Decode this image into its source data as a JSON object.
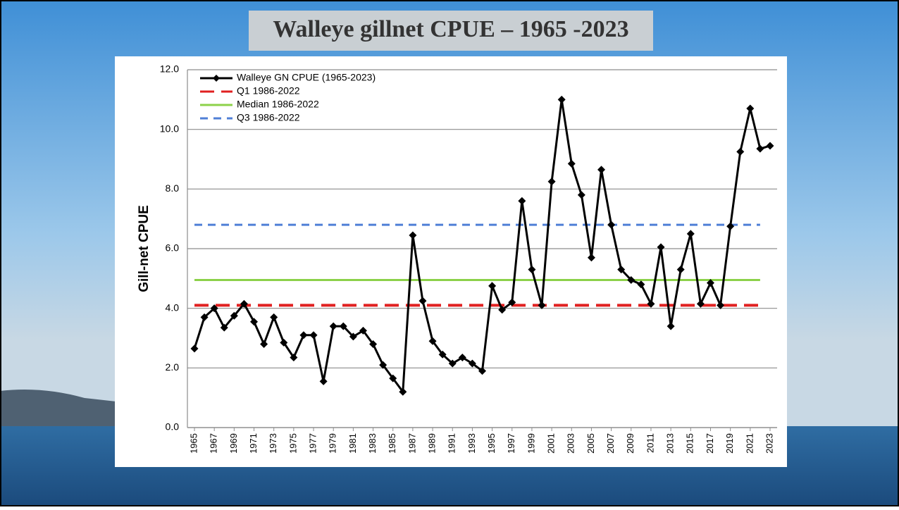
{
  "chart_data": {
    "type": "line",
    "title": "Walleye gillnet CPUE – 1965 -2023",
    "y_label": "Gill-net CPUE",
    "x": [
      1965,
      1966,
      1967,
      1968,
      1969,
      1970,
      1971,
      1972,
      1973,
      1974,
      1975,
      1976,
      1977,
      1978,
      1979,
      1980,
      1981,
      1982,
      1983,
      1984,
      1985,
      1986,
      1987,
      1988,
      1989,
      1990,
      1991,
      1992,
      1993,
      1994,
      1995,
      1996,
      1997,
      1998,
      1999,
      2000,
      2001,
      2002,
      2003,
      2004,
      2005,
      2006,
      2007,
      2008,
      2009,
      2010,
      2011,
      2012,
      2013,
      2014,
      2015,
      2016,
      2017,
      2018,
      2019,
      2020,
      2021,
      2022,
      2023
    ],
    "series": [
      {
        "name": "Walleye GN CPUE (1965-2023)",
        "color": "#000000",
        "values": [
          2.65,
          3.7,
          4.0,
          3.35,
          3.75,
          4.15,
          3.55,
          2.8,
          3.7,
          2.85,
          2.35,
          3.1,
          3.1,
          1.55,
          3.4,
          3.4,
          3.05,
          3.25,
          2.8,
          2.1,
          1.65,
          1.2,
          6.45,
          4.25,
          2.9,
          2.45,
          2.15,
          2.35,
          2.15,
          1.9,
          4.75,
          3.95,
          4.2,
          7.6,
          5.3,
          4.1,
          8.25,
          11.0,
          8.85,
          7.8,
          5.7,
          8.65,
          6.8,
          5.3,
          4.95,
          4.8,
          4.15,
          6.05,
          3.4,
          5.3,
          6.5,
          4.15,
          4.85,
          4.1,
          6.75,
          9.25,
          10.7,
          9.35,
          9.45
        ]
      }
    ],
    "reference_lines": [
      {
        "name": "Q1 1986-2022",
        "color": "#e02020",
        "style": "long-dash",
        "value": 4.1,
        "from": 1965,
        "to": 2022
      },
      {
        "name": "Median 1986-2022",
        "color": "#8cd14a",
        "style": "solid",
        "value": 4.95,
        "from": 1965,
        "to": 2022
      },
      {
        "name": "Q3 1986-2022",
        "color": "#4f7fd6",
        "style": "dash",
        "value": 6.8,
        "from": 1965,
        "to": 2022
      }
    ],
    "xlim": [
      1965,
      2023
    ],
    "xticks": [
      1965,
      1967,
      1969,
      1971,
      1973,
      1975,
      1977,
      1979,
      1981,
      1983,
      1985,
      1987,
      1989,
      1991,
      1993,
      1995,
      1997,
      1999,
      2001,
      2003,
      2005,
      2007,
      2009,
      2011,
      2013,
      2015,
      2017,
      2019,
      2021,
      2023
    ],
    "ylim": [
      0,
      12
    ],
    "yticks": [
      {
        "value": 0,
        "label": "0.0"
      },
      {
        "value": 2,
        "label": "2.0"
      },
      {
        "value": 4,
        "label": "4.0"
      },
      {
        "value": 6,
        "label": "6.0"
      },
      {
        "value": 8,
        "label": "8.0"
      },
      {
        "value": 10,
        "label": "10.0"
      },
      {
        "value": 12,
        "label": "12.0"
      }
    ],
    "grid": true,
    "legend": "upper-left"
  }
}
